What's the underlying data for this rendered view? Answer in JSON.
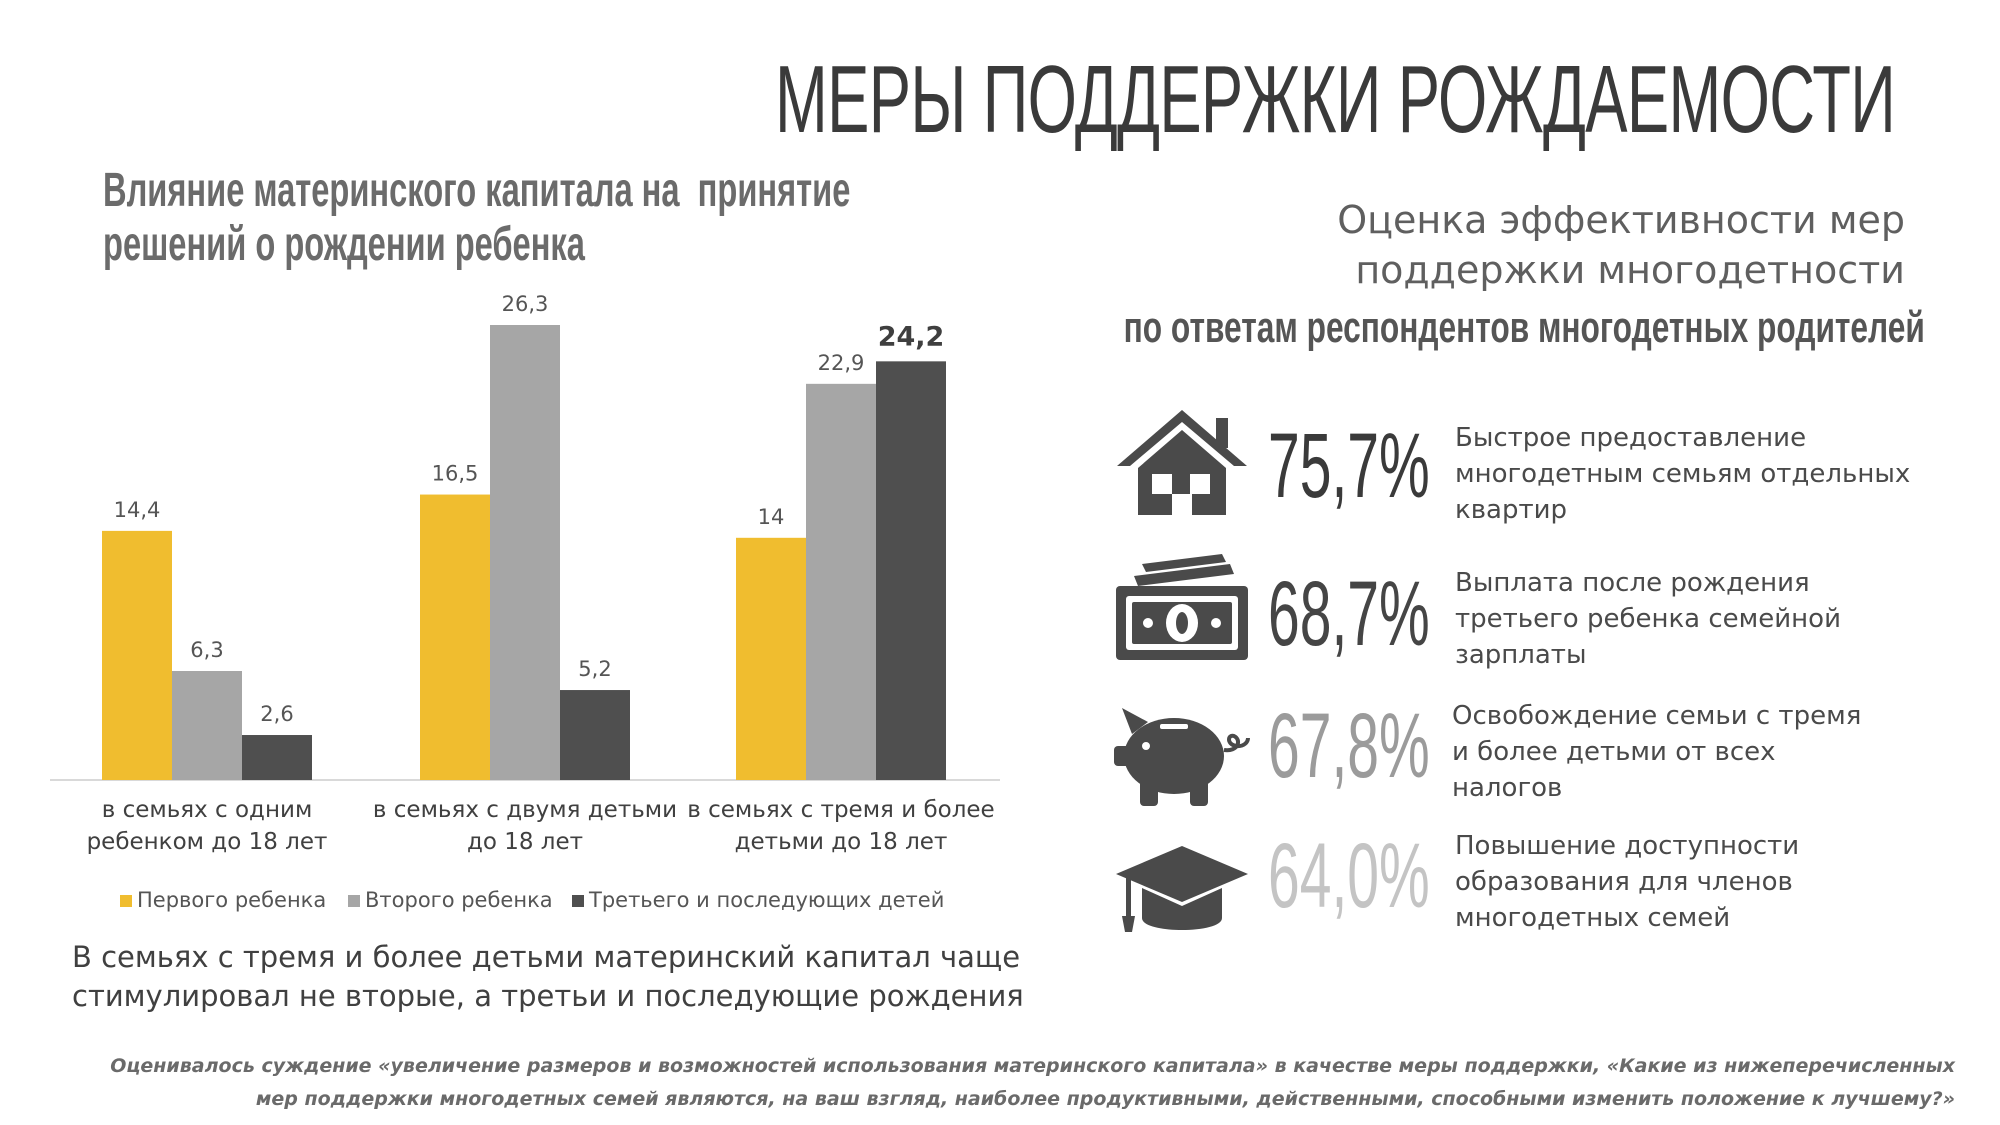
{
  "header": {
    "title": "МЕРЫ ПОДДЕРЖКИ РОЖДАЕМОСТИ"
  },
  "left": {
    "title_line1": "Влияние материнского капитала на  принятие",
    "title_line2": "решений о рождении ребенка",
    "footnote_line1": "В семьях с тремя и более детьми материнский капитал чаще",
    "footnote_line2": "стимулировал не вторые, а третьи и последующие рождения"
  },
  "chart_data": {
    "type": "bar",
    "title": "Влияние материнского капитала на  принятие решений о рождении ребенка",
    "categories": [
      [
        "в семьях с одним",
        "ребенком до 18 лет"
      ],
      [
        "в семьях с двумя детьми",
        "до 18 лет"
      ],
      [
        "в семьях с тремя и более",
        "детьми до 18 лет"
      ]
    ],
    "series": [
      {
        "name": "Первого ребенка",
        "color": "#f0bd2f",
        "values": [
          14.4,
          16.5,
          14
        ],
        "labels": [
          "14,4",
          "16,5",
          "14"
        ]
      },
      {
        "name": "Второго ребенка",
        "color": "#a6a6a6",
        "values": [
          6.3,
          26.3,
          22.9
        ],
        "labels": [
          "6,3",
          "26,3",
          "22,9"
        ]
      },
      {
        "name": "Третьего и последующих детей",
        "color": "#4f4f4f",
        "values": [
          2.6,
          5.2,
          24.2
        ],
        "labels": [
          "2,6",
          "5,2",
          "24,2"
        ]
      }
    ],
    "highlight": {
      "series": 2,
      "category": 2
    },
    "xlabel": "",
    "ylabel": "",
    "ylim": [
      0,
      28
    ],
    "grid": false,
    "legend": "bottom"
  },
  "right": {
    "subtitle_line1": "Оценка эффективности мер",
    "subtitle_line2": "поддержки многодетности",
    "caption": "по ответам респондентов многодетных родителей",
    "measures": [
      {
        "icon": "house-icon",
        "percent": "75,7%",
        "color": "#3a3a3a",
        "line1": "Быстрое предоставление",
        "line2": "многодетным семьям отдельных",
        "line3": "квартир"
      },
      {
        "icon": "money-icon",
        "percent": "68,7%",
        "color": "#454545",
        "line1": "Выплата после рождения",
        "line2": "третьего ребенка семейной",
        "line3": "зарплаты"
      },
      {
        "icon": "piggy-bank-icon",
        "percent": "67,8%",
        "color": "#9b9b9b",
        "line1": "Освобождение семьи с тремя",
        "line2": "и более детьми от всех",
        "line3": "налогов"
      },
      {
        "icon": "graduation-cap-icon",
        "percent": "64,0%",
        "color": "#c4c4c4",
        "line1": "Повышение доступности",
        "line2": "образования для членов",
        "line3": "многодетных семей"
      }
    ]
  },
  "note": {
    "line1": "Оценивалось суждение «увеличение размеров и возможностей использования материнского капитала» в качестве меры поддержки, «Какие из нижеперечисленных",
    "line2": "мер поддержки многодетных семей являются, на ваш взгляд, наиболее продуктивными, действенными, способными изменить положение к лучшему?»"
  },
  "colors": {
    "accent_yellow": "#f0bd2f",
    "gray_light": "#a6a6a6",
    "gray_dark": "#4f4f4f",
    "icon": "#4a4a4a"
  }
}
